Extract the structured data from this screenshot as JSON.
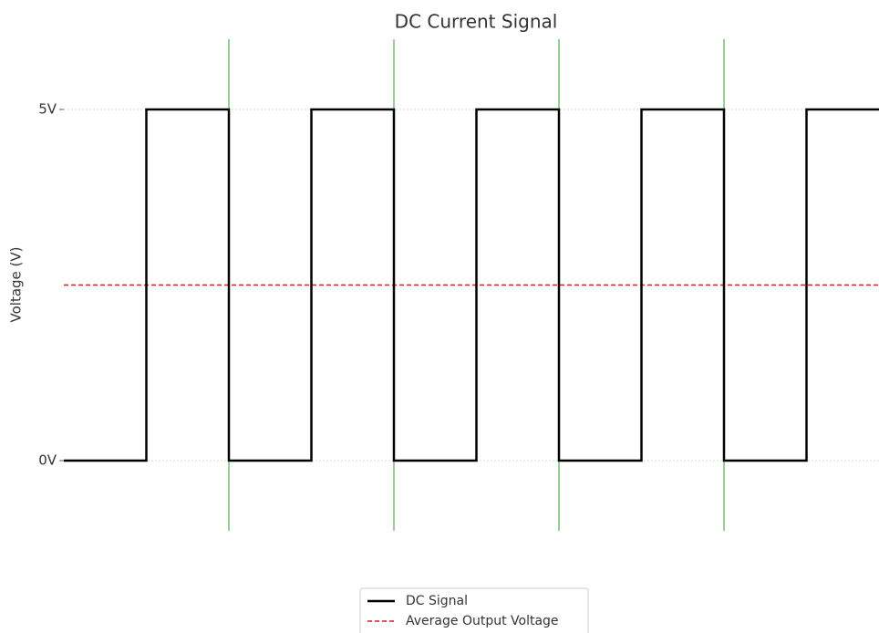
{
  "chart_data": {
    "type": "step",
    "title": "DC Current Signal",
    "y_label": "Voltage (V)",
    "x": [
      0,
      1,
      2,
      3,
      4,
      5,
      6,
      7,
      8,
      9,
      10
    ],
    "series": [
      {
        "name": "DC Signal",
        "color": "#000000",
        "values": [
          0,
          5,
          0,
          5,
          0,
          5,
          0,
          5,
          0,
          5,
          5
        ]
      }
    ],
    "hlines": [
      {
        "name": "Average Output Voltage",
        "value": 2.5,
        "color": "#e41a1c",
        "style": "dashed"
      }
    ],
    "vlines": {
      "values": [
        2,
        4,
        6,
        8
      ],
      "color": "#2ca02c"
    },
    "xlim": [
      0,
      10
    ],
    "ylim": [
      -1,
      6
    ],
    "yticks": [
      {
        "value": 0,
        "label": "0V"
      },
      {
        "value": 5,
        "label": "5V"
      }
    ],
    "grid": true,
    "legend": "bottom"
  }
}
